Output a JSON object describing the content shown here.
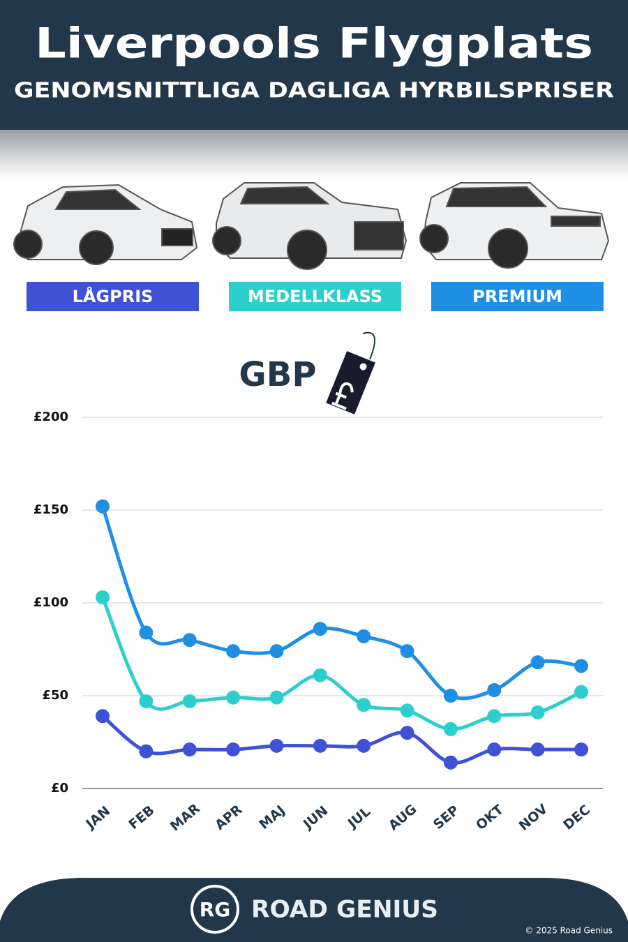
{
  "chart_data": {
    "type": "line",
    "title": "Liverpools Flygplats",
    "subtitle": "GENOMSNITTLIGA DAGLIGA HYRBILSPRISER",
    "y_label": "GBP",
    "categories": [
      "JAN",
      "FEB",
      "MAR",
      "APR",
      "MAJ",
      "JUN",
      "JUL",
      "AUG",
      "SEP",
      "OKT",
      "NOV",
      "DEC"
    ],
    "series": [
      {
        "name": "LÅGPRIS",
        "color": "#3f51d4",
        "values": [
          39,
          20,
          21,
          21,
          23,
          23,
          23,
          30,
          14,
          21,
          21,
          21
        ]
      },
      {
        "name": "MEDELLKLASS",
        "color": "#2ccfcc",
        "values": [
          103,
          47,
          47,
          49,
          49,
          61,
          45,
          42,
          32,
          39,
          41,
          52
        ]
      },
      {
        "name": "PREMIUM",
        "color": "#1f8fe6",
        "values": [
          152,
          84,
          80,
          74,
          74,
          86,
          82,
          74,
          50,
          53,
          68,
          66
        ]
      }
    ],
    "ylim": [
      0,
      200
    ],
    "yticks": [
      {
        "value": 0,
        "label": "£0"
      },
      {
        "value": 50,
        "label": "£50"
      },
      {
        "value": 100,
        "label": "£100"
      },
      {
        "value": 150,
        "label": "£150"
      },
      {
        "value": 200,
        "label": "£200"
      }
    ],
    "grid": true
  },
  "footer": {
    "logo": "RG",
    "brand": "ROAD GENIUS",
    "copyright": "© 2025 Road Genius"
  }
}
